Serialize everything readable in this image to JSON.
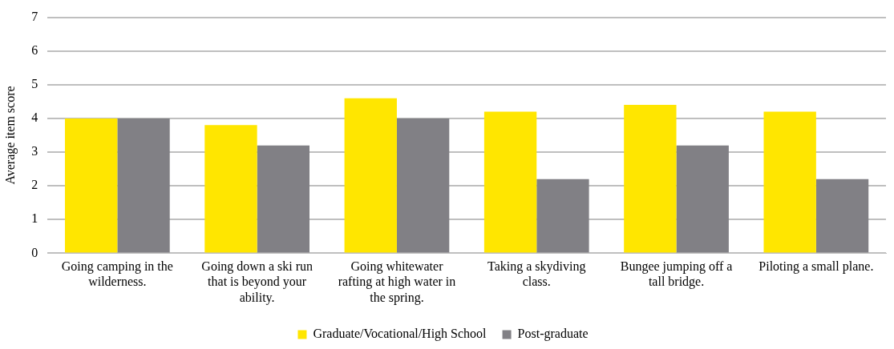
{
  "chart_data": {
    "type": "bar",
    "ylabel": "Average item score",
    "categories": [
      "Going camping in the wilderness.",
      "Going down a ski run that is beyond your ability.",
      "Going whitewater rafting at high water in the spring.",
      "Taking a skydiving class.",
      "Bungee jumping off a tall bridge.",
      "Piloting a small plane."
    ],
    "series": [
      {
        "name": "Graduate/Vocational/High School",
        "color": "#ffe600",
        "values": [
          4.0,
          3.8,
          4.6,
          4.2,
          4.4,
          4.2
        ]
      },
      {
        "name": "Post-graduate",
        "color": "#818085",
        "values": [
          4.0,
          3.2,
          4.0,
          2.2,
          3.2,
          2.2
        ]
      }
    ],
    "ylim": [
      0,
      7
    ],
    "yticks": [
      0,
      1,
      2,
      3,
      4,
      5,
      6,
      7
    ],
    "grid": "y",
    "legend": "bottom"
  }
}
